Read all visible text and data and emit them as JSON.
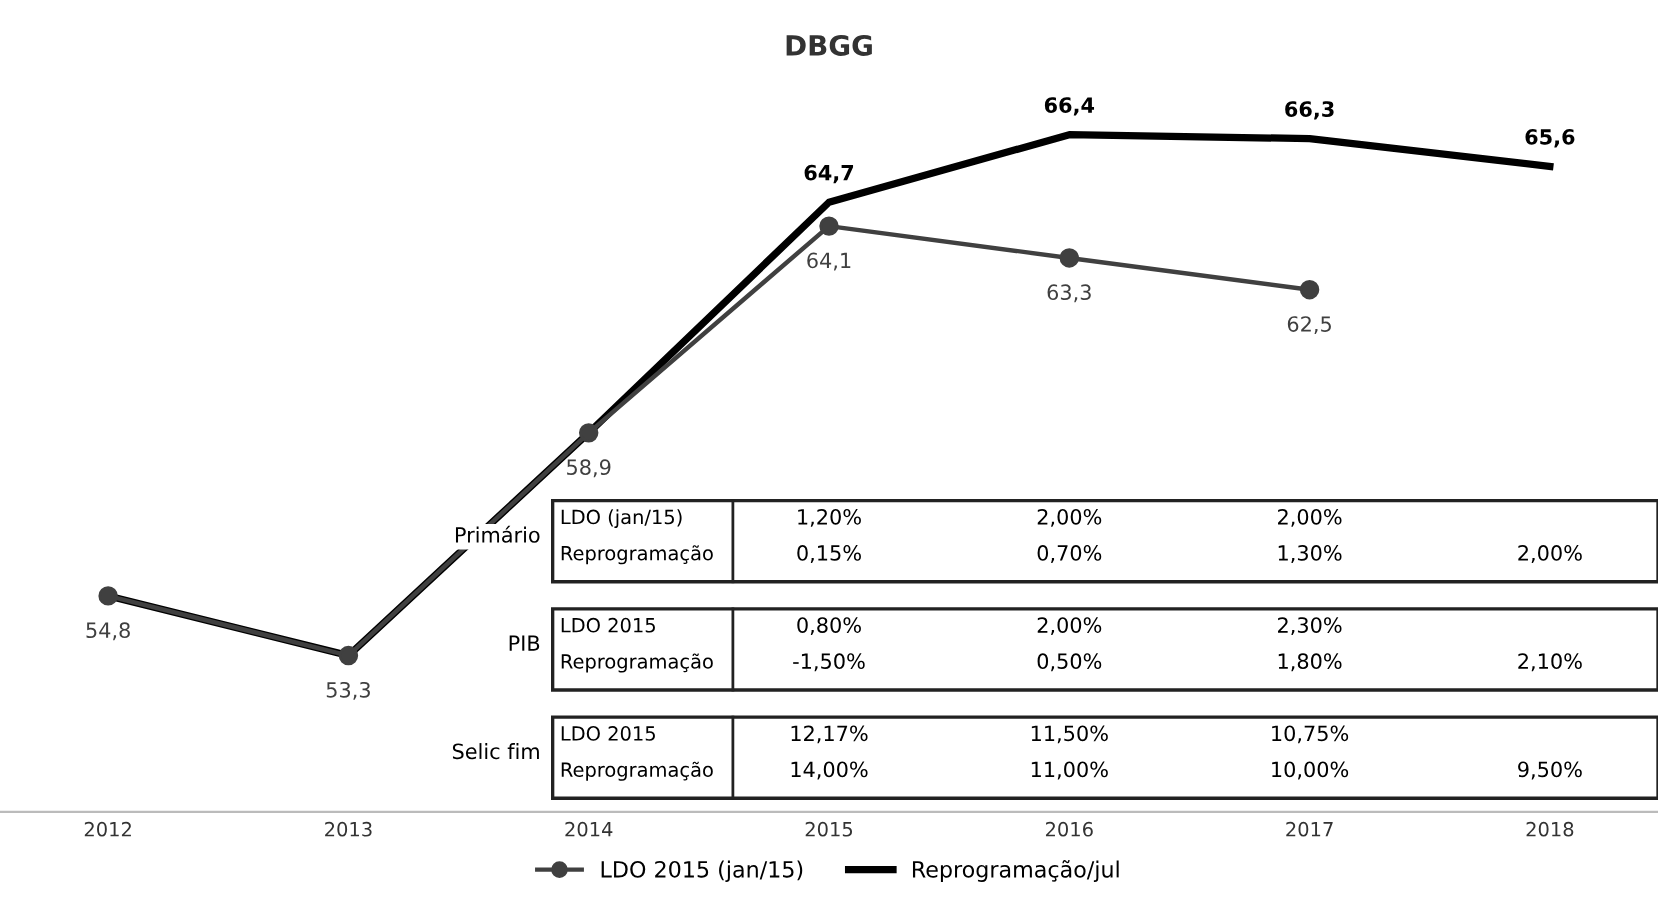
{
  "chart_data": {
    "type": "line",
    "title": "DBGG",
    "categories": [
      "2012",
      "2013",
      "2014",
      "2015",
      "2016",
      "2017",
      "2018"
    ],
    "series": [
      {
        "name": "LDO 2015 (jan/15)",
        "color": "#404040",
        "marker": "circle",
        "values": [
          54.8,
          53.3,
          58.9,
          64.1,
          63.3,
          62.5,
          null
        ],
        "value_labels": [
          "54,8",
          "53,3",
          "58,9",
          "64,1",
          "63,3",
          "62,5",
          null
        ]
      },
      {
        "name": "Reprogramação/jul",
        "color": "#000000",
        "marker": "none",
        "values": [
          54.8,
          53.3,
          58.9,
          64.7,
          66.4,
          66.3,
          65.6
        ],
        "value_labels": [
          null,
          null,
          null,
          "64,7",
          "66,4",
          "66,3",
          "65,6"
        ]
      }
    ],
    "tick_labels": "x",
    "legend": "bottom",
    "grid": false,
    "line_style": "solid",
    "annotations": [
      "Primário",
      "LDO (jan/15)",
      "1,20%",
      "2,00%",
      "2,00%",
      "Reprogramação",
      "0,15%",
      "0,70%",
      "1,30%",
      "2,00%",
      "PIB",
      "LDO 2015",
      "0,80%",
      "2,00%",
      "2,30%",
      "Reprogramação",
      "-1,50%",
      "0,50%",
      "1,80%",
      "2,10%",
      "Selic fim",
      "LDO 2015",
      "12,17%",
      "11,50%",
      "10,75%",
      "Reprogramação",
      "14,00%",
      "11,00%",
      "10,00%",
      "9,50%"
    ]
  }
}
